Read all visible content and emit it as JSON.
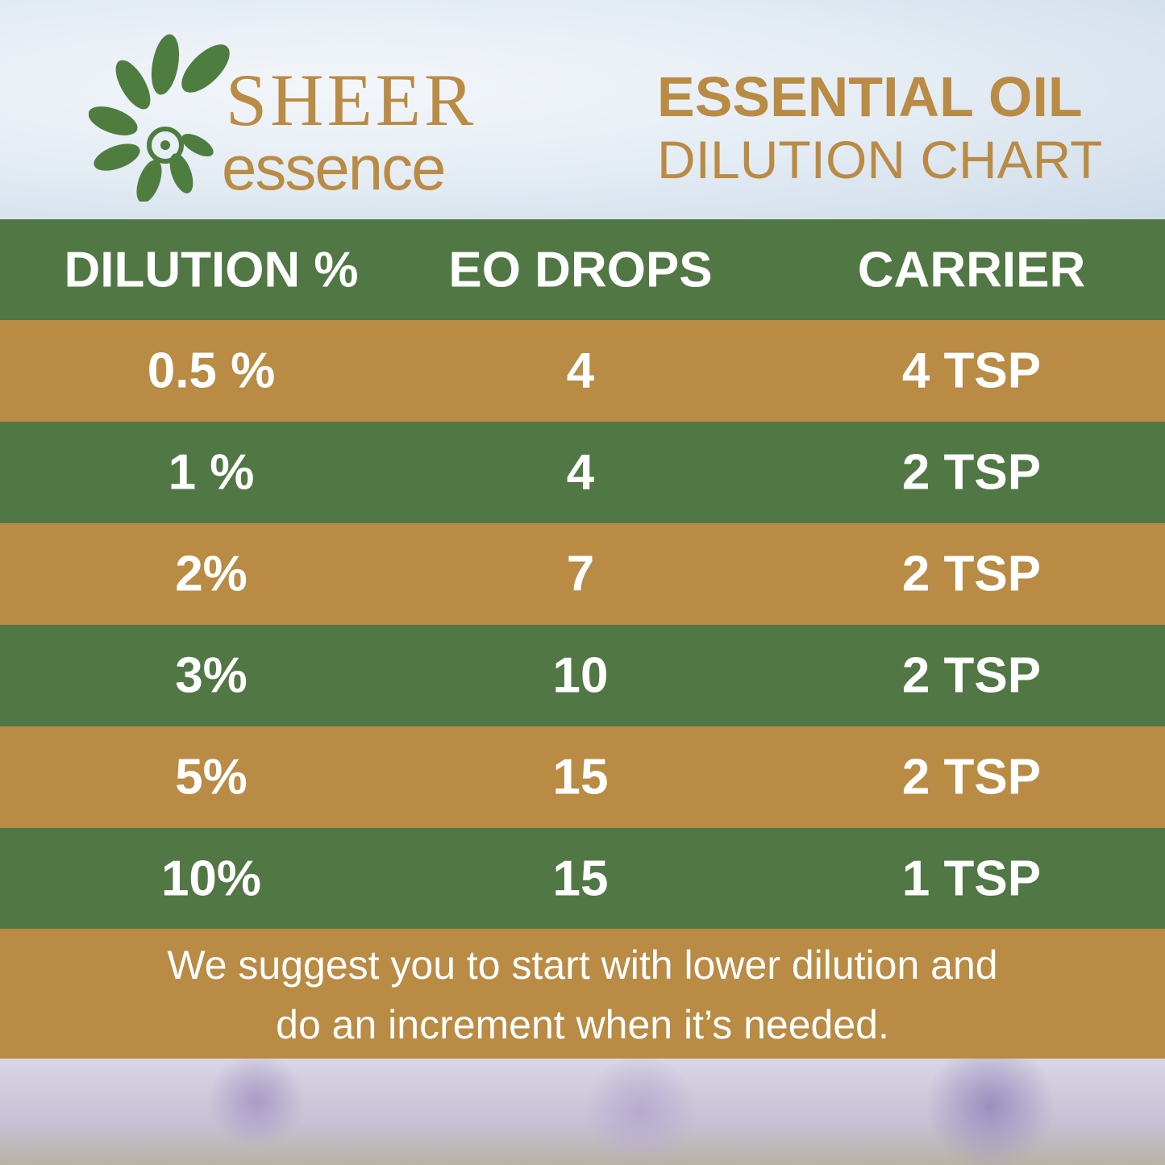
{
  "brand": {
    "name_top": "SHEER",
    "name_bottom": "essence"
  },
  "title": {
    "line1": "ESSENTIAL OIL",
    "line2": "DILUTION CHART"
  },
  "table": {
    "headers": [
      "DILUTION %",
      "EO DROPS",
      "CARRIER"
    ],
    "rows": [
      [
        "0.5 %",
        "4",
        "4 TSP"
      ],
      [
        "1 %",
        "4",
        "2 TSP"
      ],
      [
        "2%",
        "7",
        "2 TSP"
      ],
      [
        "3%",
        "10",
        "2 TSP"
      ],
      [
        "5%",
        "15",
        "2 TSP"
      ],
      [
        "10%",
        "15",
        "1 TSP"
      ]
    ]
  },
  "note": {
    "line1": "We suggest you to start with lower dilution and",
    "line2": "do an increment when it’s needed."
  },
  "colors": {
    "green": "#517744",
    "gold": "#b98b44"
  }
}
